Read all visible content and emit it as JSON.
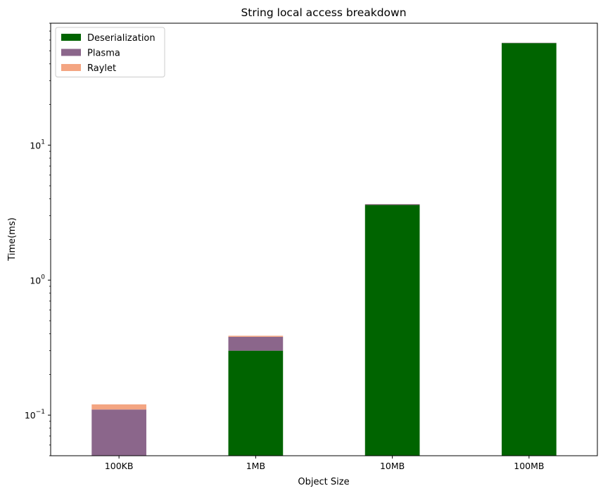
{
  "chart_data": {
    "type": "bar",
    "stacked": true,
    "title": "String local access breakdown",
    "xlabel": "Object Size",
    "ylabel": "Time(ms)",
    "categories": [
      "100KB",
      "1MB",
      "10MB",
      "100MB"
    ],
    "yscale": "log",
    "ylim": [
      0.05,
      80
    ],
    "y_ticks": [
      {
        "value": 0.1,
        "base": "10",
        "exp": "−1"
      },
      {
        "value": 1,
        "base": "10",
        "exp": "0"
      },
      {
        "value": 10,
        "base": "10",
        "exp": "1"
      }
    ],
    "legend": "top-left",
    "grid": false,
    "series": [
      {
        "name": "Deserialization",
        "color": "#006400",
        "values": [
          0.0,
          0.3,
          3.6,
          57.0
        ]
      },
      {
        "name": "Plasma",
        "color": "#8B668B",
        "values": [
          0.11,
          0.08,
          0.05,
          0.3
        ]
      },
      {
        "name": "Raylet",
        "color": "#F4A582",
        "values": [
          0.01,
          0.007,
          0.006,
          0.02
        ]
      }
    ]
  }
}
